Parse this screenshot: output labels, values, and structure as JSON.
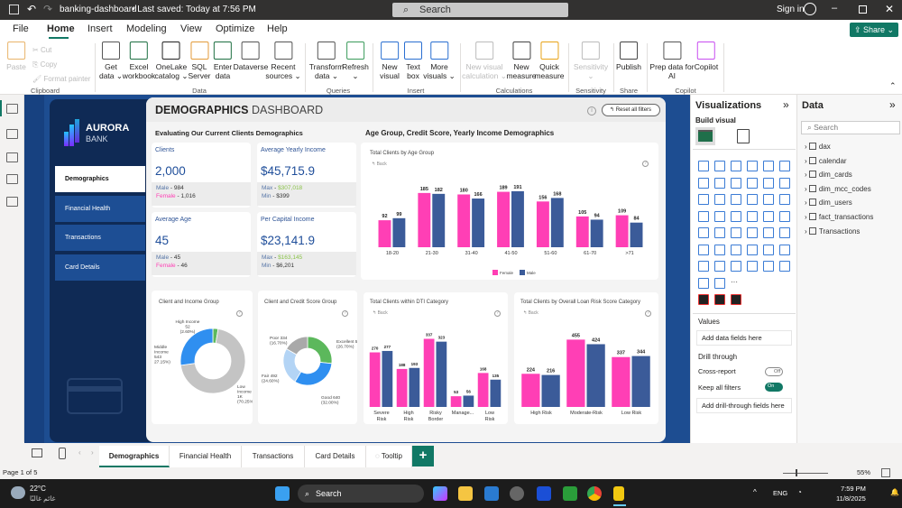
{
  "app": {
    "file_title": "banking-dashboard",
    "saved_status": "• Last saved: Today at 7:56 PM",
    "search_placeholder": "Search",
    "sign_in": "Sign in",
    "share_label": "Share"
  },
  "menu": [
    "File",
    "Home",
    "Insert",
    "Modeling",
    "View",
    "Optimize",
    "Help"
  ],
  "menu_active": "Home",
  "ribbon": {
    "buttons": [
      {
        "label": "Paste",
        "disabled": true
      },
      {
        "label": "Get\ndata ⌄"
      },
      {
        "label": "Excel\nworkbook"
      },
      {
        "label": "OneLake\ncatalog ⌄"
      },
      {
        "label": "SQL\nServer"
      },
      {
        "label": "Enter\ndata"
      },
      {
        "label": "Dataverse"
      },
      {
        "label": "Recent\nsources ⌄"
      },
      {
        "label": "Transform\ndata ⌄"
      },
      {
        "label": "Refresh\n⌄"
      },
      {
        "label": "New\nvisual"
      },
      {
        "label": "Text\nbox"
      },
      {
        "label": "More\nvisuals ⌄"
      },
      {
        "label": "New visual\ncalculation ⌄",
        "disabled": true
      },
      {
        "label": "New\nmeasure"
      },
      {
        "label": "Quick\nmeasure"
      },
      {
        "label": "Sensitivity\n⌄",
        "disabled": true
      },
      {
        "label": "Publish"
      },
      {
        "label": "Prep data for\nAI"
      },
      {
        "label": "Copilot"
      }
    ],
    "small_buttons": [
      "Cut",
      "Copy",
      "Format painter"
    ],
    "groups": [
      "Clipboard",
      "Data",
      "Queries",
      "Insert",
      "Calculations",
      "Sensitivity",
      "Share",
      "Copilot"
    ]
  },
  "report": {
    "brand": {
      "name": "AURORA",
      "sub": "BANK"
    },
    "nav": [
      "Demographics",
      "Financial Health",
      "Transactions",
      "Card Details"
    ],
    "nav_active": "Demographics",
    "title_bold": "DEMOGRAPHICS",
    "title_light": "DASHBOARD",
    "reset_label": "Reset all filters",
    "left_heading": "Evaluating Our Current Clients Demographics",
    "right_heading": "Age Group, Credit Score, Yearly Income Demographics",
    "kpis": [
      {
        "label": "Clients",
        "value": "2,000",
        "l1k": "Male",
        "l1v": "984",
        "l2k": "Female",
        "l2v": "1,016"
      },
      {
        "label": "Average Yearly Income",
        "value": "$45,715.9",
        "l1k": "Max",
        "l1v": "$307,018",
        "l2k": "Min",
        "l2v": "$399"
      },
      {
        "label": "Average Age",
        "value": "45",
        "l1k": "Male",
        "l1v": "45",
        "l2k": "Female",
        "l2v": "46"
      },
      {
        "label": "Per Capital Income",
        "value": "$23,141.9",
        "l1k": "Max",
        "l1v": "$163,145",
        "l2k": "Min",
        "l2v": "$6,201"
      }
    ],
    "back_label": "Back"
  },
  "chart_data": [
    {
      "type": "bar",
      "title": "Total Clients by Age Group",
      "categories": [
        "18-20",
        "21-30",
        "31-40",
        "41-50",
        "51-60",
        "61-70",
        ">71"
      ],
      "series": [
        {
          "name": "Female",
          "color": "#ff3fb5",
          "values": [
            92,
            185,
            180,
            189,
            156,
            105,
            109
          ]
        },
        {
          "name": "Male",
          "color": "#3b5b99",
          "values": [
            99,
            182,
            166,
            191,
            168,
            94,
            84
          ]
        }
      ],
      "ylim": [
        0,
        240
      ],
      "legend": "bottom",
      "grid": false
    },
    {
      "type": "pie",
      "title": "Client and Income Group",
      "donut": true,
      "slices": [
        {
          "label": "High Income 52",
          "pct": "(2.60%)",
          "value": 52,
          "color": "#5cb85c"
        },
        {
          "label": "Low Income 1K",
          "pct": "(70.25%)",
          "value": 1405,
          "color": "#c4c4c4"
        },
        {
          "label": "Middle Income 543",
          "pct": "27.15%)",
          "value": 543,
          "color": "#2f8ff0"
        }
      ]
    },
    {
      "type": "pie",
      "title": "Client and Credit Score Group",
      "donut": true,
      "slices": [
        {
          "label": "Excellent 534",
          "pct": "(26.70%)",
          "value": 534,
          "color": "#5cb85c"
        },
        {
          "label": "Good 640",
          "pct": "(32.00%)",
          "value": 640,
          "color": "#2f8ff0"
        },
        {
          "label": "Fair 492",
          "pct": "(24.60%)",
          "value": 492,
          "color": "#b3d4f5"
        },
        {
          "label": "Poor 334",
          "pct": "(16.70%)",
          "value": 334,
          "color": "#a9a9a9"
        }
      ]
    },
    {
      "type": "bar",
      "title": "Total Clients within DTI Category",
      "categories": [
        "Severe Risk",
        "High Risk",
        "Risky Border",
        "Manage...",
        "Low Risk"
      ],
      "series": [
        {
          "name": "Female",
          "color": "#ff3fb5",
          "values": [
            270,
            188,
            337,
            53,
            168
          ]
        },
        {
          "name": "Male",
          "color": "#3b5b99",
          "values": [
            277,
            193,
            323,
            56,
            135
          ]
        }
      ],
      "ylim": [
        0,
        375
      ],
      "grid": false
    },
    {
      "type": "bar",
      "title": "Total Clients by Overall Loan Risk Score Category",
      "categories": [
        "High Risk",
        "Moderate-Risk",
        "Low Risk"
      ],
      "series": [
        {
          "name": "Female",
          "color": "#ff3fb5",
          "values": [
            224,
            455,
            337
          ]
        },
        {
          "name": "Male",
          "color": "#3b5b99",
          "values": [
            216,
            424,
            344
          ]
        }
      ],
      "ylim": [
        0,
        500
      ],
      "grid": false
    }
  ],
  "visualizations": {
    "title": "Visualizations",
    "build_visual": "Build visual",
    "values_label": "Values",
    "values_placeholder": "Add data fields here",
    "drill_title": "Drill through",
    "cross_report": "Cross-report",
    "cross_report_state": "Off",
    "keep_filters": "Keep all filters",
    "keep_filters_state": "On",
    "drill_placeholder": "Add drill-through fields here"
  },
  "data_pane": {
    "title": "Data",
    "search_placeholder": "Search",
    "tables": [
      "dax",
      "calendar",
      "dim_cards",
      "dim_mcc_codes",
      "dim_users",
      "fact_transactions",
      "Transactions"
    ]
  },
  "page_tabs": [
    "Demographics",
    "Financial Health",
    "Transactions",
    "Card Details",
    "Tooltip"
  ],
  "page_tab_active": "Demographics",
  "status": {
    "page": "Page 1 of 5",
    "zoom": "55%"
  },
  "taskbar": {
    "weather_temp": "22°C",
    "weather_text": "غائم غالبًا",
    "search": "Search",
    "lang": "ENG",
    "time": "7:59 PM",
    "date": "11/8/2025"
  }
}
